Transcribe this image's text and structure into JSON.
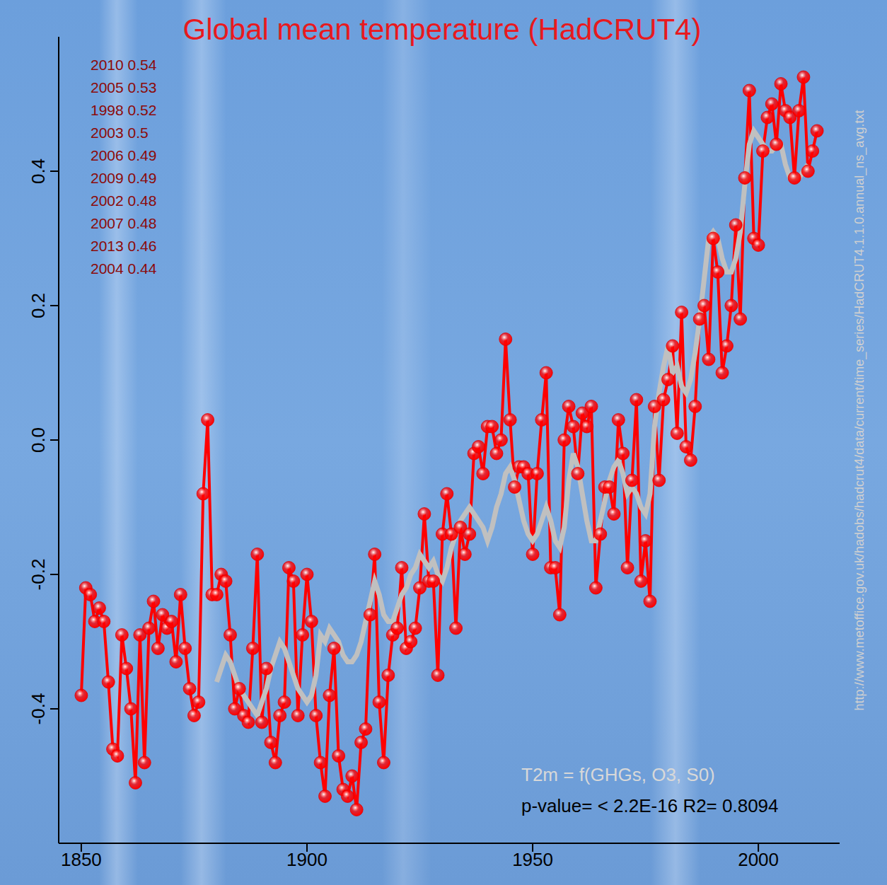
{
  "chart_data": {
    "type": "line",
    "title": "Global mean temperature (HadCRUT4)",
    "annotations": [
      "2010 0.54",
      "2005 0.53",
      "1998 0.52",
      "2003 0.5",
      "2006 0.49",
      "2009 0.49",
      "2002 0.48",
      "2007 0.48",
      "2013 0.46",
      "2004 0.44"
    ],
    "model_text": "T2m = f(GHGs, O3, S0)",
    "stats_text": "p-value= < 2.2E-16 R2= 0.8094",
    "source": "http://www.metoffice.gov.uk/hadobs/hadcrut4/data/current/time_series/HadCRUT4.1.1.0.annual_ns_avg.txt",
    "x": [
      1850,
      1851,
      1852,
      1853,
      1854,
      1855,
      1856,
      1857,
      1858,
      1859,
      1860,
      1861,
      1862,
      1863,
      1864,
      1865,
      1866,
      1867,
      1868,
      1869,
      1870,
      1871,
      1872,
      1873,
      1874,
      1875,
      1876,
      1877,
      1878,
      1879,
      1880,
      1881,
      1882,
      1883,
      1884,
      1885,
      1886,
      1887,
      1888,
      1889,
      1890,
      1891,
      1892,
      1893,
      1894,
      1895,
      1896,
      1897,
      1898,
      1899,
      1900,
      1901,
      1902,
      1903,
      1904,
      1905,
      1906,
      1907,
      1908,
      1909,
      1910,
      1911,
      1912,
      1913,
      1914,
      1915,
      1916,
      1917,
      1918,
      1919,
      1920,
      1921,
      1922,
      1923,
      1924,
      1925,
      1926,
      1927,
      1928,
      1929,
      1930,
      1931,
      1932,
      1933,
      1934,
      1935,
      1936,
      1937,
      1938,
      1939,
      1940,
      1941,
      1942,
      1943,
      1944,
      1945,
      1946,
      1947,
      1948,
      1949,
      1950,
      1951,
      1952,
      1953,
      1954,
      1955,
      1956,
      1957,
      1958,
      1959,
      1960,
      1961,
      1962,
      1963,
      1964,
      1965,
      1966,
      1967,
      1968,
      1969,
      1970,
      1971,
      1972,
      1973,
      1974,
      1975,
      1976,
      1977,
      1978,
      1979,
      1980,
      1981,
      1982,
      1983,
      1984,
      1985,
      1986,
      1987,
      1988,
      1989,
      1990,
      1991,
      1992,
      1993,
      1994,
      1995,
      1996,
      1997,
      1998,
      1999,
      2000,
      2001,
      2002,
      2003,
      2004,
      2005,
      2006,
      2007,
      2008,
      2009,
      2010,
      2011,
      2012,
      2013
    ],
    "series": [
      {
        "color": "#ff0000",
        "marker": "circle",
        "values": [
          -0.38,
          -0.22,
          -0.23,
          -0.27,
          -0.25,
          -0.27,
          -0.36,
          -0.46,
          -0.47,
          -0.29,
          -0.34,
          -0.4,
          -0.51,
          -0.29,
          -0.48,
          -0.28,
          -0.24,
          -0.31,
          -0.26,
          -0.28,
          -0.27,
          -0.33,
          -0.23,
          -0.31,
          -0.37,
          -0.41,
          -0.39,
          -0.08,
          0.03,
          -0.23,
          -0.23,
          -0.2,
          -0.21,
          -0.29,
          -0.4,
          -0.37,
          -0.41,
          -0.42,
          -0.31,
          -0.17,
          -0.42,
          -0.34,
          -0.45,
          -0.48,
          -0.41,
          -0.39,
          -0.19,
          -0.21,
          -0.41,
          -0.29,
          -0.2,
          -0.27,
          -0.41,
          -0.48,
          -0.53,
          -0.38,
          -0.31,
          -0.47,
          -0.52,
          -0.53,
          -0.5,
          -0.55,
          -0.45,
          -0.43,
          -0.26,
          -0.17,
          -0.39,
          -0.48,
          -0.35,
          -0.29,
          -0.28,
          -0.19,
          -0.31,
          -0.3,
          -0.28,
          -0.22,
          -0.11,
          -0.21,
          -0.21,
          -0.35,
          -0.14,
          -0.08,
          -0.14,
          -0.28,
          -0.13,
          -0.17,
          -0.14,
          -0.02,
          -0.01,
          -0.05,
          0.02,
          0.02,
          -0.02,
          0,
          0.15,
          0.03,
          -0.07,
          -0.04,
          -0.04,
          -0.05,
          -0.17,
          -0.05,
          0.03,
          0.1,
          -0.19,
          -0.19,
          -0.26,
          0,
          0.05,
          0.02,
          -0.05,
          0.04,
          0.02,
          0.05,
          -0.22,
          -0.14,
          -0.07,
          -0.07,
          -0.11,
          0.03,
          -0.02,
          -0.19,
          -0.06,
          0.06,
          -0.21,
          -0.15,
          -0.24,
          0.05,
          -0.06,
          0.06,
          0.09,
          0.14,
          0.01,
          0.19,
          -0.01,
          -0.03,
          0.05,
          0.18,
          0.2,
          0.12,
          0.3,
          0.25,
          0.1,
          0.14,
          0.2,
          0.32,
          0.18,
          0.39,
          0.52,
          0.3,
          0.29,
          0.43,
          0.48,
          0.5,
          0.44,
          0.53,
          0.49,
          0.48,
          0.39,
          0.49,
          0.54,
          0.4,
          0.43,
          0.46
        ]
      },
      {
        "color": "#c0c0c0",
        "values": [
          null,
          null,
          null,
          null,
          null,
          null,
          null,
          null,
          null,
          null,
          null,
          null,
          null,
          null,
          null,
          null,
          null,
          null,
          null,
          null,
          null,
          null,
          null,
          null,
          null,
          null,
          null,
          null,
          null,
          null,
          -0.36,
          -0.34,
          -0.32,
          -0.33,
          -0.35,
          -0.37,
          -0.38,
          -0.39,
          -0.4,
          -0.41,
          -0.39,
          -0.37,
          -0.34,
          -0.32,
          -0.3,
          -0.31,
          -0.33,
          -0.35,
          -0.37,
          -0.38,
          -0.39,
          -0.38,
          -0.35,
          -0.29,
          -0.3,
          -0.28,
          -0.29,
          -0.3,
          -0.32,
          -0.33,
          -0.33,
          -0.32,
          -0.3,
          -0.27,
          -0.24,
          -0.21,
          -0.23,
          -0.26,
          -0.27,
          -0.27,
          -0.25,
          -0.23,
          -0.22,
          -0.2,
          -0.19,
          -0.17,
          -0.18,
          -0.19,
          -0.18,
          -0.2,
          -0.21,
          -0.19,
          -0.16,
          -0.14,
          -0.12,
          -0.11,
          -0.1,
          -0.11,
          -0.12,
          -0.13,
          -0.15,
          -0.13,
          -0.1,
          -0.08,
          -0.05,
          -0.04,
          -0.06,
          -0.09,
          -0.12,
          -0.14,
          -0.15,
          -0.14,
          -0.12,
          -0.1,
          -0.12,
          -0.15,
          -0.16,
          -0.13,
          -0.06,
          -0.02,
          -0.04,
          -0.08,
          -0.12,
          -0.15,
          -0.15,
          -0.12,
          -0.09,
          -0.06,
          -0.04,
          -0.03,
          -0.05,
          -0.08,
          -0.07,
          -0.08,
          -0.1,
          -0.11,
          -0.08,
          0.02,
          0.07,
          0.11,
          0.14,
          0.1,
          0.11,
          0.08,
          0.07,
          0.09,
          0.13,
          0.18,
          0.24,
          0.3,
          0.31,
          0.3,
          0.27,
          0.25,
          0.25,
          0.27,
          0.31,
          0.38,
          0.44,
          0.46,
          0.45,
          0.44,
          0.43,
          0.43,
          0.44,
          0.44,
          0.41,
          0.39,
          0.39,
          0.39,
          0.4,
          0.41,
          null,
          null
        ]
      }
    ],
    "xlim": [
      1845,
      2018
    ],
    "xticks": [
      1850,
      1900,
      1950,
      2000
    ],
    "ylim": [
      -0.6,
      0.6
    ],
    "yticks": [
      -0.4,
      -0.2,
      {
        "value": 0,
        "label": "0.0"
      },
      0.2,
      0.4
    ],
    "grid": false
  }
}
